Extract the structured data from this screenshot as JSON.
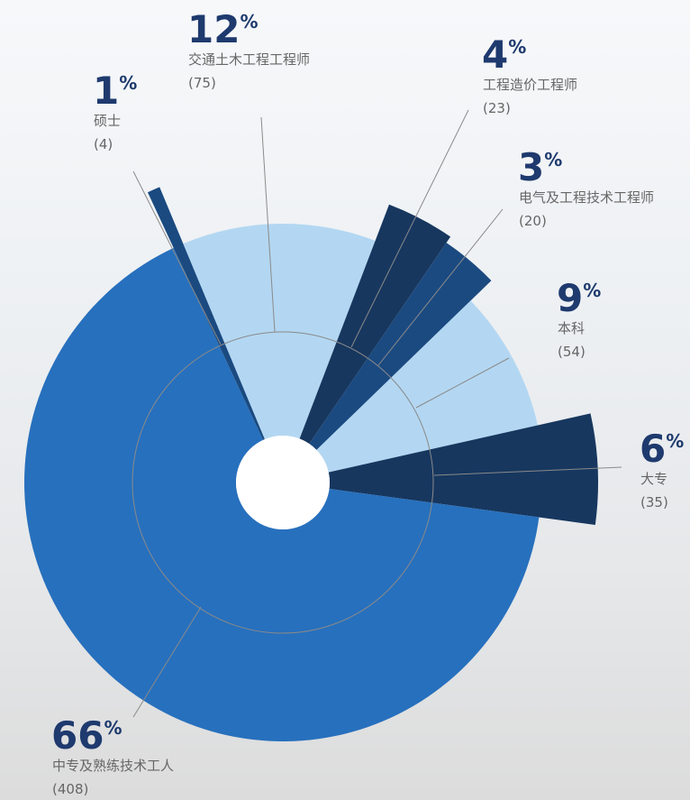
{
  "chart_data": {
    "type": "rose",
    "categories": [
      "硕士",
      "交通土木工程工程师",
      "工程造价工程师",
      "电气及工程技术工程师",
      "本科",
      "大专",
      "中专及熟练技术工人"
    ],
    "values": [
      4,
      75,
      23,
      20,
      54,
      35,
      408
    ],
    "value_labels": [
      "(4)",
      "(75)",
      "(23)",
      "(20)",
      "(54)",
      "(35)",
      "(408)"
    ],
    "percent_labels": [
      "1%",
      "12%",
      "4%",
      "3%",
      "9%",
      "6%",
      "66%"
    ],
    "colors": [
      "#1a4a80",
      "#b3d7f2",
      "#17375f",
      "#1b4a80",
      "#b3d7f2",
      "#17375f",
      "#2770bd"
    ]
  }
}
